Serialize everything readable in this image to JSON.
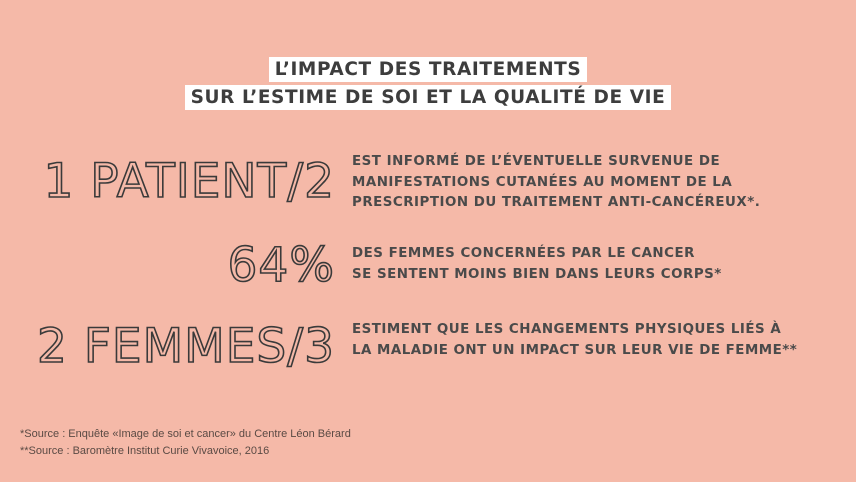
{
  "title": {
    "line1": "L’IMPACT DES TRAITEMENTS",
    "line2": "SUR L’ESTIME DE SOI ET LA QUALITÉ DE VIE"
  },
  "stats": [
    {
      "value": "1 PATIENT/2",
      "lines": [
        "EST INFORMÉ DE L’ÉVENTUELLE SURVENUE DE",
        "MANIFESTATIONS CUTANÉES AU MOMENT DE LA",
        "PRESCRIPTION DU TRAITEMENT ANTI-CANCÉREUX*."
      ]
    },
    {
      "value": "64%",
      "lines": [
        "DES FEMMES CONCERNÉES PAR LE CANCER",
        "SE SENTENT MOINS BIEN DANS LEURS CORPS*"
      ]
    },
    {
      "value": "2 FEMMES/3",
      "lines": [
        "ESTIMENT QUE LES CHANGEMENTS PHYSIQUES LIÉS À",
        "LA MALADIE ONT UN IMPACT SUR LEUR VIE DE FEMME**"
      ]
    }
  ],
  "sources": {
    "line1": "*Source : Enquête «Image de soi et cancer» du Centre Léon Bérard",
    "line2": "**Source : Baromètre Institut Curie Vivavoice, 2016"
  },
  "colors": {
    "background": "#f5b9a8",
    "title_bg": "#ffffff",
    "text": "#4a4a4a"
  }
}
